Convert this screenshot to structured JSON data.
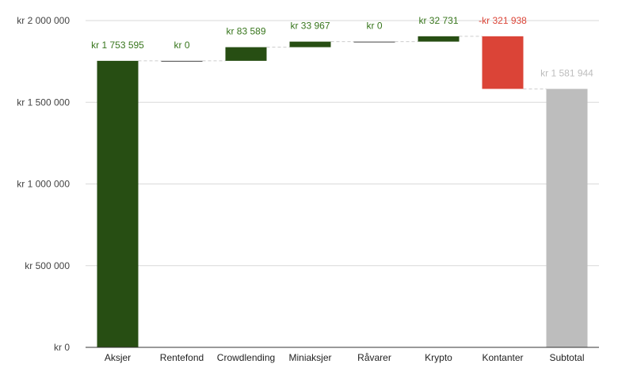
{
  "chart_data": {
    "type": "waterfall",
    "categories": [
      "Aksjer",
      "Rentefond",
      "Crowdlending",
      "Miniaksjer",
      "Råvarer",
      "Krypto",
      "Kontanter",
      "Subtotal"
    ],
    "values": [
      1753595,
      0,
      83589,
      33967,
      0,
      32731,
      -321938,
      1581944
    ],
    "data_labels": [
      "kr 1 753 595",
      "kr  0",
      "kr  83 589",
      "kr  33 967",
      "kr  0",
      "kr  32 731",
      "-kr  321 938",
      "kr 1 581 944"
    ],
    "subtotal_index": 7,
    "ylim": [
      0,
      2000000
    ],
    "yticks": [
      0,
      500000,
      1000000,
      1500000,
      2000000
    ],
    "ytick_labels": [
      "kr   0",
      "kr  500 000",
      "kr 1 000 000",
      "kr 1 500 000",
      "kr 2 000 000"
    ],
    "grid": true,
    "colors": {
      "increase": "#274e13",
      "decrease": "#db4437",
      "subtotal": "#bdbdbd",
      "increase_label": "#38761d",
      "decrease_label": "#db4437",
      "subtotal_label": "#bdbdbd",
      "grid": "#d9d9d9",
      "connector": "#cccccc"
    }
  }
}
